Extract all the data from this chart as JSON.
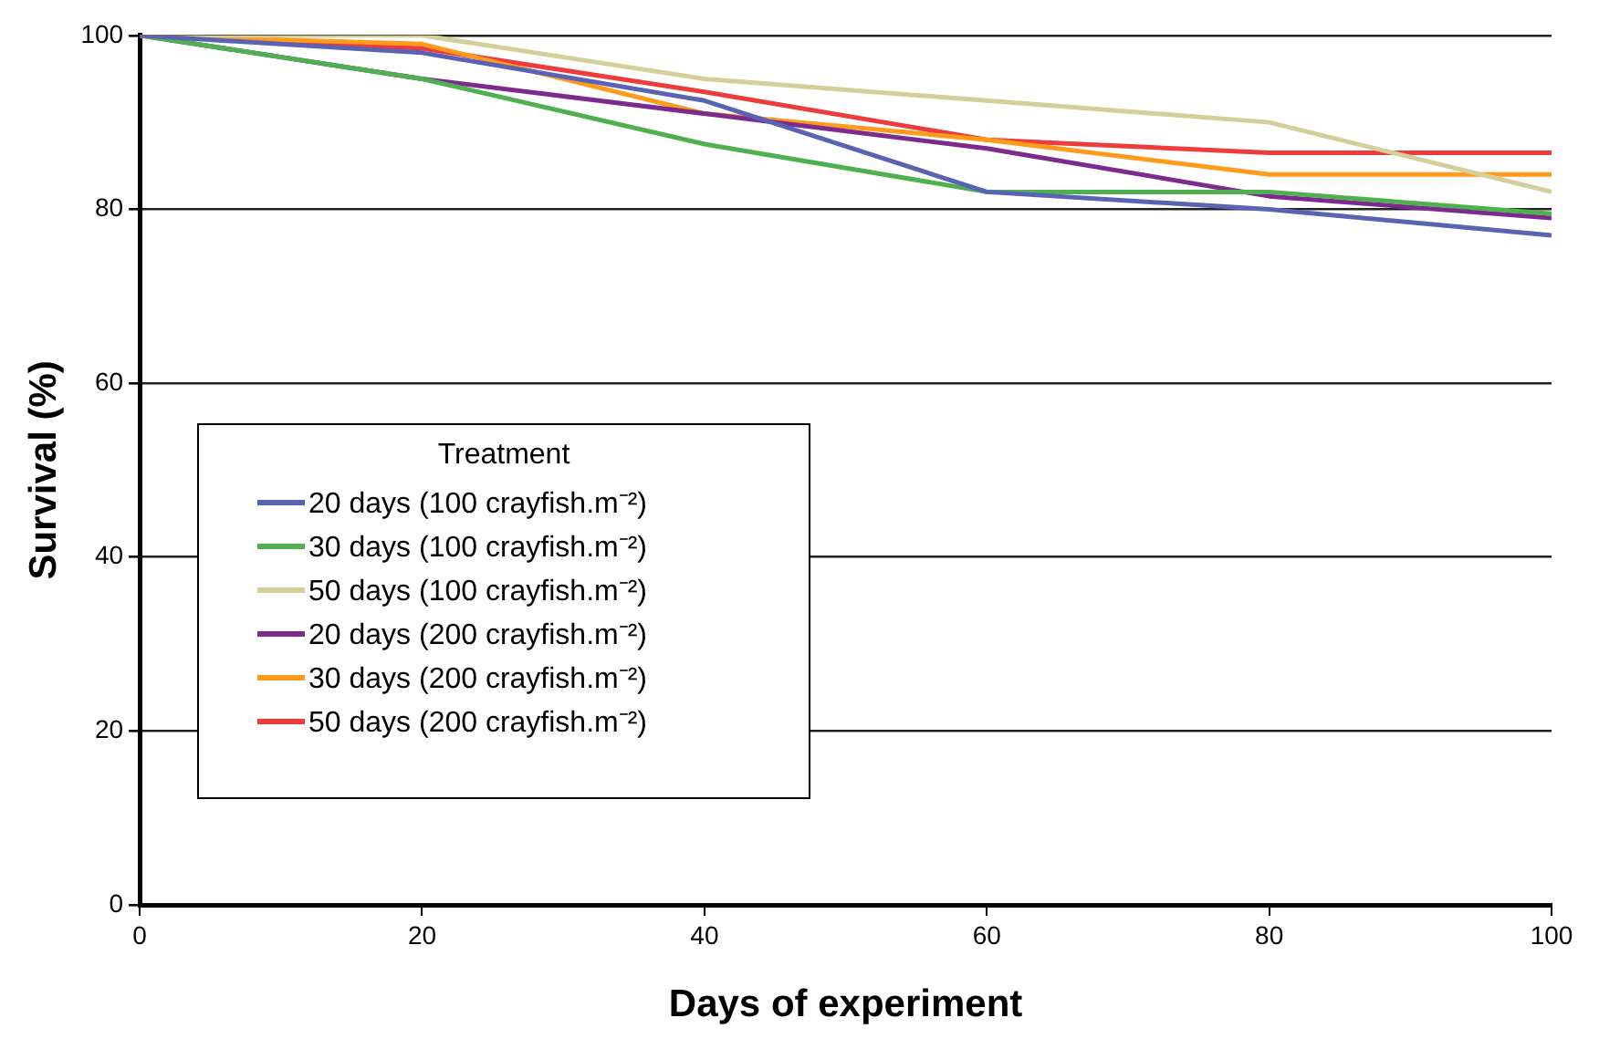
{
  "chart_data": {
    "type": "line",
    "xlabel": "Days of experiment",
    "ylabel": "Survival (%)",
    "legend_title": "Treatment",
    "x": [
      0,
      20,
      40,
      60,
      80,
      100
    ],
    "series": [
      {
        "name": "20 days (100 crayfish.m⁻²)",
        "color": "#5a62b4",
        "values": [
          100,
          98,
          92.5,
          82,
          80,
          77
        ]
      },
      {
        "name": "30 days (100 crayfish.m⁻²)",
        "color": "#4fb04f",
        "values": [
          100,
          95,
          87.5,
          82,
          82,
          79.5
        ]
      },
      {
        "name": "50 days (100 crayfish.m⁻²)",
        "color": "#d4cf9a",
        "values": [
          100,
          100,
          95,
          92.5,
          90,
          82
        ]
      },
      {
        "name": "20 days (200 crayfish.m⁻²)",
        "color": "#7d2a8e",
        "values": [
          100,
          95,
          91,
          87,
          81.5,
          79
        ]
      },
      {
        "name": "30 days (200 crayfish.m⁻²)",
        "color": "#ff9a1a",
        "values": [
          100,
          99,
          91,
          88,
          84,
          84
        ]
      },
      {
        "name": "50 days (200 crayfish.m⁻²)",
        "color": "#ee3b3b",
        "values": [
          100,
          98.5,
          93.5,
          88,
          86.5,
          86.5
        ]
      }
    ],
    "xlim": [
      0,
      100
    ],
    "xticks": [
      0,
      20,
      40,
      60,
      80,
      100
    ],
    "ylim": [
      0,
      100
    ],
    "yticks": [
      0,
      20,
      40,
      60,
      80,
      100
    ],
    "grid": "y",
    "legend": "bottom left",
    "marker": "none",
    "line_style": "solid"
  }
}
